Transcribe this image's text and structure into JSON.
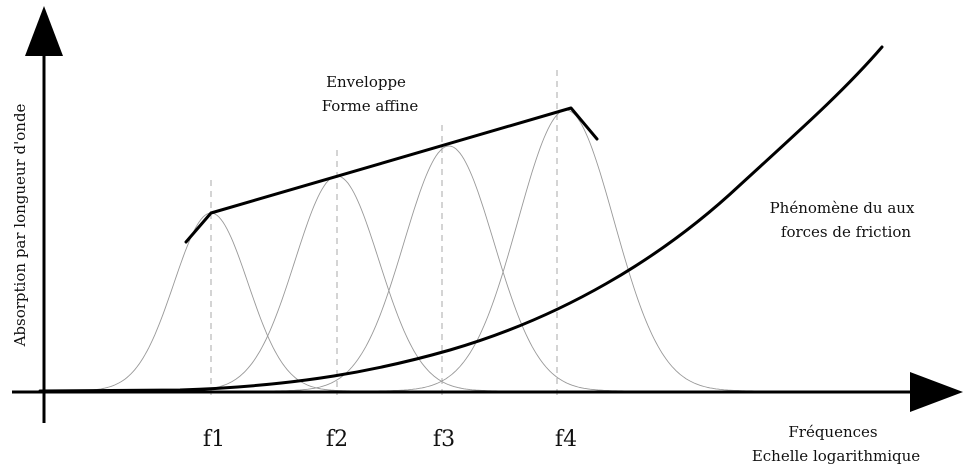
{
  "labels": {
    "y_axis": "Absorption par longueur d'onde",
    "envelope_line1": "Enveloppe",
    "envelope_line2": "Forme affine",
    "friction_line1": "Phénomène du aux",
    "friction_line2": "forces de friction",
    "x_axis_line1": "Fréquences",
    "x_axis_line2": "Echelle logarithmique"
  },
  "ticks": [
    "f1",
    "f2",
    "f3",
    "f4"
  ],
  "colors": {
    "axis": "#000000",
    "envelope": "#000000",
    "friction": "#000000",
    "bell": "#999999",
    "dashed": "#aaaaaa"
  }
}
